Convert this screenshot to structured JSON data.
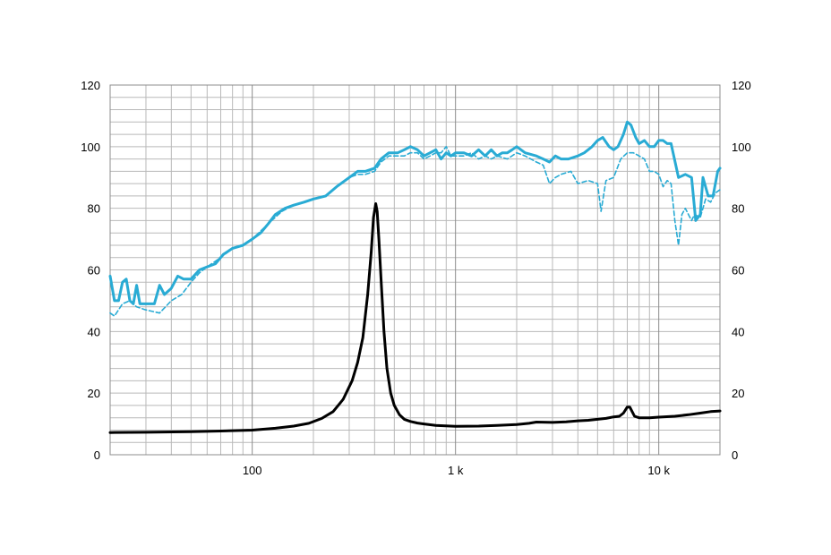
{
  "chart_data": {
    "type": "line",
    "x_scale": "log",
    "xlim": [
      20,
      20000
    ],
    "ylim": [
      0,
      120
    ],
    "grid": true,
    "legend": "none",
    "x_tick_labels": [
      {
        "x": 100,
        "label": "100"
      },
      {
        "x": 1000,
        "label": "1 k"
      },
      {
        "x": 10000,
        "label": "10 k"
      }
    ],
    "y_ticks_left": [
      "0",
      "20",
      "40",
      "60",
      "80",
      "100",
      "120"
    ],
    "y_ticks_right": [
      "0",
      "20",
      "40",
      "60",
      "80",
      "100",
      "120"
    ],
    "colors": {
      "spl": "#29abd4",
      "impedance": "#000000",
      "grid": "#b9b9b9"
    },
    "series": [
      {
        "key": "spl_on_axis",
        "style": "solid",
        "color": "#29abd4",
        "width": 3,
        "points": [
          [
            20,
            58
          ],
          [
            21,
            50
          ],
          [
            22,
            50
          ],
          [
            23,
            56
          ],
          [
            24,
            57
          ],
          [
            25,
            50
          ],
          [
            26,
            49
          ],
          [
            27,
            55
          ],
          [
            28,
            49
          ],
          [
            30,
            49
          ],
          [
            33,
            49
          ],
          [
            35,
            55
          ],
          [
            37,
            52
          ],
          [
            40,
            54
          ],
          [
            43,
            58
          ],
          [
            46,
            57
          ],
          [
            50,
            57
          ],
          [
            55,
            60
          ],
          [
            60,
            61
          ],
          [
            66,
            62
          ],
          [
            72,
            65
          ],
          [
            80,
            67
          ],
          [
            90,
            68
          ],
          [
            100,
            70
          ],
          [
            110,
            72
          ],
          [
            120,
            75
          ],
          [
            130,
            78
          ],
          [
            145,
            80
          ],
          [
            160,
            81
          ],
          [
            180,
            82
          ],
          [
            200,
            83
          ],
          [
            230,
            84
          ],
          [
            260,
            87
          ],
          [
            300,
            90
          ],
          [
            330,
            92
          ],
          [
            360,
            92
          ],
          [
            400,
            93
          ],
          [
            430,
            96
          ],
          [
            470,
            98
          ],
          [
            520,
            98
          ],
          [
            560,
            99
          ],
          [
            600,
            100
          ],
          [
            650,
            99
          ],
          [
            700,
            97
          ],
          [
            750,
            98
          ],
          [
            800,
            99
          ],
          [
            850,
            96
          ],
          [
            900,
            98
          ],
          [
            950,
            97
          ],
          [
            1000,
            98
          ],
          [
            1100,
            98
          ],
          [
            1200,
            97
          ],
          [
            1300,
            99
          ],
          [
            1400,
            97
          ],
          [
            1500,
            99
          ],
          [
            1600,
            97
          ],
          [
            1700,
            98
          ],
          [
            1800,
            98
          ],
          [
            1900,
            99
          ],
          [
            2000,
            100
          ],
          [
            2200,
            98
          ],
          [
            2500,
            97
          ],
          [
            2700,
            96
          ],
          [
            2900,
            95
          ],
          [
            3100,
            97
          ],
          [
            3300,
            96
          ],
          [
            3600,
            96
          ],
          [
            4000,
            97
          ],
          [
            4300,
            98
          ],
          [
            4700,
            100
          ],
          [
            5000,
            102
          ],
          [
            5300,
            103
          ],
          [
            5700,
            100
          ],
          [
            6000,
            99
          ],
          [
            6300,
            100
          ],
          [
            6700,
            104
          ],
          [
            7000,
            108
          ],
          [
            7300,
            107
          ],
          [
            7700,
            103
          ],
          [
            8000,
            101
          ],
          [
            8500,
            102
          ],
          [
            9000,
            100
          ],
          [
            9500,
            100
          ],
          [
            10000,
            102
          ],
          [
            10500,
            102
          ],
          [
            11000,
            101
          ],
          [
            11500,
            101
          ],
          [
            12500,
            90
          ],
          [
            13500,
            91
          ],
          [
            14500,
            90
          ],
          [
            15200,
            76
          ],
          [
            16000,
            78
          ],
          [
            16500,
            90
          ],
          [
            17500,
            84
          ],
          [
            18500,
            84
          ],
          [
            19500,
            92
          ],
          [
            20000,
            93
          ]
        ]
      },
      {
        "key": "spl_off_axis",
        "style": "dashed",
        "color": "#29abd4",
        "width": 1.6,
        "points": [
          [
            20,
            46
          ],
          [
            21,
            45
          ],
          [
            23,
            49
          ],
          [
            25,
            50
          ],
          [
            27,
            48
          ],
          [
            30,
            47
          ],
          [
            35,
            46
          ],
          [
            40,
            50
          ],
          [
            45,
            52
          ],
          [
            50,
            56
          ],
          [
            55,
            59
          ],
          [
            60,
            61
          ],
          [
            70,
            64
          ],
          [
            80,
            67
          ],
          [
            90,
            68
          ],
          [
            100,
            70
          ],
          [
            120,
            75
          ],
          [
            140,
            79
          ],
          [
            160,
            81
          ],
          [
            180,
            82
          ],
          [
            200,
            83
          ],
          [
            230,
            84
          ],
          [
            260,
            87
          ],
          [
            300,
            90
          ],
          [
            330,
            91
          ],
          [
            360,
            91
          ],
          [
            400,
            92
          ],
          [
            430,
            95
          ],
          [
            470,
            97
          ],
          [
            520,
            97
          ],
          [
            560,
            97
          ],
          [
            600,
            98
          ],
          [
            650,
            98
          ],
          [
            700,
            96
          ],
          [
            750,
            97
          ],
          [
            800,
            98
          ],
          [
            850,
            98
          ],
          [
            900,
            100
          ],
          [
            950,
            97
          ],
          [
            1000,
            97
          ],
          [
            1100,
            97
          ],
          [
            1200,
            98
          ],
          [
            1300,
            96
          ],
          [
            1400,
            97
          ],
          [
            1500,
            96
          ],
          [
            1600,
            97
          ],
          [
            1800,
            96
          ],
          [
            2000,
            98
          ],
          [
            2200,
            97
          ],
          [
            2500,
            95
          ],
          [
            2700,
            94
          ],
          [
            2900,
            88
          ],
          [
            3100,
            90
          ],
          [
            3300,
            91
          ],
          [
            3700,
            92
          ],
          [
            4000,
            88
          ],
          [
            4500,
            89
          ],
          [
            5000,
            88
          ],
          [
            5200,
            79
          ],
          [
            5500,
            89
          ],
          [
            6000,
            90
          ],
          [
            6500,
            96
          ],
          [
            7000,
            98
          ],
          [
            7500,
            98
          ],
          [
            8000,
            97
          ],
          [
            8500,
            96
          ],
          [
            9000,
            92
          ],
          [
            9500,
            92
          ],
          [
            10000,
            91
          ],
          [
            10500,
            87
          ],
          [
            11000,
            89
          ],
          [
            11500,
            88
          ],
          [
            12000,
            76
          ],
          [
            12500,
            68
          ],
          [
            13000,
            78
          ],
          [
            13500,
            80
          ],
          [
            14000,
            78
          ],
          [
            14500,
            76
          ],
          [
            15000,
            78
          ],
          [
            16000,
            77
          ],
          [
            17000,
            83
          ],
          [
            18000,
            82
          ],
          [
            19000,
            85
          ],
          [
            20000,
            86
          ]
        ]
      },
      {
        "key": "impedance",
        "style": "solid",
        "color": "#000000",
        "width": 3,
        "points": [
          [
            20,
            7.2
          ],
          [
            30,
            7.3
          ],
          [
            50,
            7.5
          ],
          [
            70,
            7.7
          ],
          [
            100,
            8
          ],
          [
            130,
            8.6
          ],
          [
            160,
            9.3
          ],
          [
            190,
            10.2
          ],
          [
            220,
            11.8
          ],
          [
            250,
            14
          ],
          [
            280,
            18
          ],
          [
            310,
            24
          ],
          [
            330,
            30
          ],
          [
            350,
            38
          ],
          [
            370,
            52
          ],
          [
            385,
            66
          ],
          [
            395,
            77
          ],
          [
            405,
            81.5
          ],
          [
            412,
            79
          ],
          [
            420,
            70
          ],
          [
            432,
            55
          ],
          [
            445,
            40
          ],
          [
            460,
            28
          ],
          [
            480,
            20
          ],
          [
            500,
            16
          ],
          [
            530,
            13
          ],
          [
            560,
            11.5
          ],
          [
            600,
            10.8
          ],
          [
            650,
            10.3
          ],
          [
            700,
            10
          ],
          [
            800,
            9.5
          ],
          [
            1000,
            9.2
          ],
          [
            1300,
            9.3
          ],
          [
            1600,
            9.5
          ],
          [
            2000,
            9.8
          ],
          [
            2300,
            10.2
          ],
          [
            2500,
            10.6
          ],
          [
            3000,
            10.5
          ],
          [
            3500,
            10.7
          ],
          [
            4000,
            11
          ],
          [
            4500,
            11.2
          ],
          [
            5000,
            11.5
          ],
          [
            5500,
            11.8
          ],
          [
            6000,
            12.3
          ],
          [
            6400,
            12.5
          ],
          [
            6700,
            13.5
          ],
          [
            7000,
            15.5
          ],
          [
            7200,
            15.5
          ],
          [
            7600,
            12.5
          ],
          [
            8000,
            12
          ],
          [
            9000,
            12
          ],
          [
            10000,
            12.2
          ],
          [
            12000,
            12.5
          ],
          [
            14000,
            13
          ],
          [
            16000,
            13.5
          ],
          [
            18000,
            14
          ],
          [
            20000,
            14.2
          ]
        ]
      }
    ]
  }
}
